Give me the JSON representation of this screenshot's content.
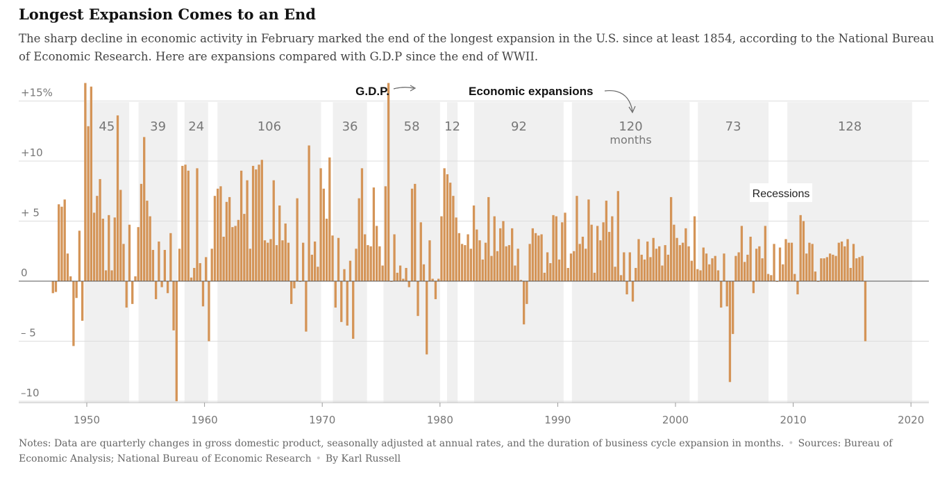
{
  "header": {
    "title": "Longest Expansion Comes to an End",
    "subtitle": "The sharp decline in economic activity in February marked the end of the longest expansion in the U.S. since at least 1854, according to the National Bureau of Economic Research. Here are expansions compared with G.D.P since the end of WWII."
  },
  "footer": {
    "notes": "Notes: Data are quarterly changes in gross domestic product, seasonally adjusted at annual rates, and the duration of business cycle expansion in months.",
    "sources": "Sources: Bureau of Economic Analysis; National Bureau of Economic Research",
    "byline": "By Karl Russell"
  },
  "chart_data": {
    "type": "bar",
    "title": "Longest Expansion Comes to an End",
    "xlabel": "",
    "ylabel": "",
    "xlim": [
      1945.6,
      2021.0
    ],
    "ylim": [
      -10.5,
      16
    ],
    "y_ticks": [
      {
        "value": 15,
        "label": "+15%"
      },
      {
        "value": 10,
        "label": "+10"
      },
      {
        "value": 5,
        "label": "+ 5"
      },
      {
        "value": 0,
        "label": "0"
      },
      {
        "value": -5,
        "label": "– 5"
      },
      {
        "value": -10,
        "label": "–10"
      }
    ],
    "x_ticks": [
      {
        "value": 1950,
        "label": "1950"
      },
      {
        "value": 1960,
        "label": "1960"
      },
      {
        "value": 1970,
        "label": "1970"
      },
      {
        "value": 1980,
        "label": "1980"
      },
      {
        "value": 1990,
        "label": "1990"
      },
      {
        "value": 2000,
        "label": "2000"
      },
      {
        "value": 2010,
        "label": "2010"
      },
      {
        "value": 2020,
        "label": "2020"
      }
    ],
    "series": [
      {
        "name": "G.D.P.",
        "color": "#d49457",
        "start_year": 1947.0,
        "step": 0.25,
        "values": [
          -1.0,
          -0.9,
          6.4,
          6.2,
          6.8,
          2.3,
          0.4,
          -5.4,
          -1.4,
          4.2,
          -3.3,
          16.5,
          12.9,
          16.2,
          5.7,
          7.1,
          8.5,
          5.2,
          0.9,
          5.5,
          0.9,
          5.3,
          13.8,
          7.6,
          3.1,
          -2.2,
          4.7,
          -1.9,
          0.4,
          4.5,
          8.1,
          12.0,
          6.7,
          5.4,
          2.6,
          -1.5,
          3.3,
          -0.5,
          2.6,
          -1.0,
          4.0,
          -4.1,
          -10.0,
          2.7,
          9.6,
          9.7,
          9.2,
          0.3,
          1.1,
          9.4,
          1.5,
          -2.1,
          2.0,
          -5.0,
          2.7,
          7.1,
          7.7,
          7.9,
          3.7,
          6.6,
          7.0,
          4.5,
          4.6,
          5.1,
          9.2,
          5.6,
          8.4,
          2.7,
          9.6,
          9.3,
          9.7,
          10.1,
          3.4,
          3.2,
          3.5,
          8.4,
          3.0,
          6.3,
          3.4,
          4.8,
          3.2,
          -1.9,
          -0.6,
          6.9,
          0.0,
          3.2,
          -4.2,
          11.3,
          2.2,
          3.3,
          1.2,
          9.4,
          7.7,
          5.2,
          10.3,
          3.8,
          -2.2,
          3.6,
          -3.4,
          1.0,
          -3.7,
          1.7,
          -4.8,
          2.7,
          6.9,
          9.4,
          3.9,
          3.0,
          2.9,
          7.8,
          4.6,
          2.9,
          1.3,
          7.9,
          16.5,
          0.0,
          3.9,
          0.7,
          1.3,
          0.2,
          1.1,
          -0.5,
          7.7,
          8.1,
          -2.9,
          4.9,
          1.4,
          -6.1,
          3.4,
          0.2,
          -1.5,
          0.2,
          5.4,
          9.4,
          8.9,
          8.2,
          7.1,
          5.3,
          4.0,
          3.1,
          3.0,
          3.9,
          2.7,
          6.3,
          4.3,
          3.4,
          1.8,
          3.2,
          7.0,
          2.1,
          5.4,
          2.5,
          4.4,
          5.0,
          2.9,
          3.0,
          4.4,
          1.3,
          2.7,
          0.1,
          -3.6,
          -1.9,
          3.1,
          4.4,
          4.0,
          3.8,
          3.9,
          0.7,
          2.4,
          1.5,
          5.5,
          5.4,
          1.8,
          4.9,
          5.7,
          1.1,
          2.3,
          2.5,
          7.1,
          3.1,
          3.7,
          2.7,
          6.8,
          4.7,
          0.7,
          4.6,
          3.4,
          4.9,
          6.7,
          4.1,
          5.4,
          1.2,
          7.5,
          0.5,
          2.4,
          -1.1,
          2.4,
          -1.7,
          1.1,
          3.5,
          2.2,
          1.8,
          3.3,
          2.0,
          3.6,
          2.7,
          2.9,
          1.3,
          3.0,
          2.2,
          7.0,
          4.7,
          3.6,
          3.0,
          3.2,
          4.4,
          2.9,
          1.7,
          5.4,
          1.0,
          0.9,
          2.8,
          2.3,
          1.4,
          1.9,
          2.1,
          0.9,
          -2.2,
          2.3,
          -2.1,
          -8.4,
          -4.4,
          2.1,
          2.4,
          4.6,
          1.6,
          2.2,
          3.7,
          -1.0,
          2.7,
          2.9,
          1.9,
          4.6,
          0.6,
          0.5,
          3.1,
          0.0,
          2.8,
          1.4,
          3.5,
          3.2,
          3.2,
          0.6,
          -1.1,
          5.5,
          5.0,
          2.3,
          3.2,
          3.1,
          0.8,
          0.0,
          1.9,
          1.9,
          2.0,
          2.3,
          2.2,
          2.1,
          3.2,
          3.3,
          2.9,
          3.5,
          1.1,
          3.1,
          1.9,
          2.0,
          2.1,
          -5.0
        ]
      }
    ],
    "expansions": [
      {
        "start": 1949.8,
        "end": 1953.6,
        "months": "45"
      },
      {
        "start": 1954.4,
        "end": 1957.7,
        "months": "39"
      },
      {
        "start": 1958.3,
        "end": 1960.3,
        "months": "24"
      },
      {
        "start": 1961.1,
        "end": 1969.9,
        "months": "106"
      },
      {
        "start": 1970.9,
        "end": 1973.8,
        "months": "36"
      },
      {
        "start": 1975.2,
        "end": 1980.0,
        "months": "58"
      },
      {
        "start": 1980.6,
        "end": 1981.5,
        "months": "12"
      },
      {
        "start": 1982.9,
        "end": 1990.5,
        "months": "92"
      },
      {
        "start": 1991.2,
        "end": 2001.2,
        "months": "120",
        "unit_label": "months"
      },
      {
        "start": 2001.9,
        "end": 2007.9,
        "months": "73"
      },
      {
        "start": 2009.5,
        "end": 2020.1,
        "months": "128"
      }
    ],
    "annotations": [
      {
        "text": "G.D.P.",
        "points_to": "1978 Q2 bar"
      },
      {
        "text": "Economic expansions",
        "points_to": "1991–2001 expansion"
      },
      {
        "text": "Recessions",
        "points_to": "gaps between expansions"
      }
    ]
  }
}
